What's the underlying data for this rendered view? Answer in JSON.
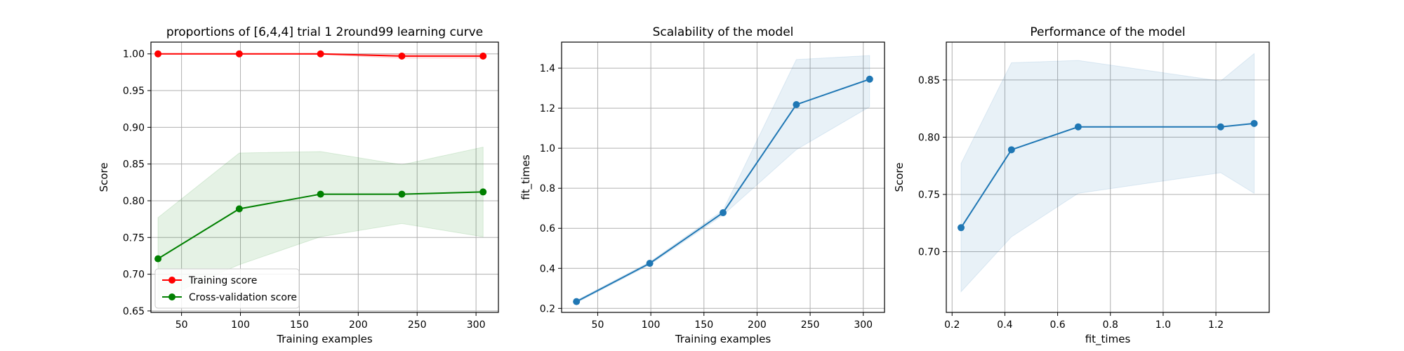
{
  "chart_data": [
    {
      "type": "line",
      "title": "proportions of [6,4,4] trial 1 2round99 learning curve",
      "xlabel": "Training examples",
      "ylabel": "Score",
      "xlim": [
        24,
        319
      ],
      "ylim": [
        0.648,
        1.016
      ],
      "xticks": [
        50,
        100,
        150,
        200,
        250,
        300
      ],
      "yticks": [
        0.65,
        0.7,
        0.75,
        0.8,
        0.85,
        0.9,
        0.95,
        1.0
      ],
      "grid": true,
      "legend": "lower-left",
      "x": [
        30,
        99,
        168,
        237,
        306
      ],
      "series": [
        {
          "name": "Training score",
          "color": "#ff0000",
          "values": [
            1.0,
            1.0,
            1.0,
            0.997,
            0.997
          ],
          "band_upper": [
            1.0,
            1.0,
            1.0,
            1.0,
            1.0
          ],
          "band_lower": [
            1.0,
            1.0,
            0.999,
            0.994,
            0.994
          ]
        },
        {
          "name": "Cross-validation score",
          "color": "#008000",
          "values": [
            0.721,
            0.789,
            0.809,
            0.809,
            0.812
          ],
          "band_upper": [
            0.777,
            0.865,
            0.867,
            0.849,
            0.873
          ],
          "band_lower": [
            0.665,
            0.713,
            0.751,
            0.769,
            0.751
          ]
        }
      ]
    },
    {
      "type": "line",
      "title": "Scalability of the model",
      "xlabel": "Training examples",
      "ylabel": "fit_times",
      "xlim": [
        16,
        320
      ],
      "ylim": [
        0.18,
        1.53
      ],
      "xticks": [
        50,
        100,
        150,
        200,
        250,
        300
      ],
      "yticks": [
        0.2,
        0.4,
        0.6,
        0.8,
        1.0,
        1.2,
        1.4
      ],
      "grid": true,
      "x": [
        30,
        99,
        168,
        237,
        306
      ],
      "series": [
        {
          "name": "",
          "color": "#1f77b4",
          "values": [
            0.234,
            0.425,
            0.678,
            1.218,
            1.345
          ],
          "band_upper": [
            0.24,
            0.432,
            0.69,
            1.443,
            1.463
          ],
          "band_lower": [
            0.228,
            0.418,
            0.666,
            0.993,
            1.207
          ]
        }
      ]
    },
    {
      "type": "line",
      "title": "Performance of the model",
      "xlabel": "fit_times",
      "ylabel": "Score",
      "xlim": [
        0.178,
        1.402
      ],
      "ylim": [
        0.647,
        0.883
      ],
      "xticks": [
        0.2,
        0.4,
        0.6,
        0.8,
        1.0,
        1.2
      ],
      "yticks": [
        0.7,
        0.75,
        0.8,
        0.85
      ],
      "grid": true,
      "x": [
        0.234,
        0.425,
        0.678,
        1.218,
        1.345
      ],
      "series": [
        {
          "name": "",
          "color": "#1f77b4",
          "values": [
            0.721,
            0.789,
            0.809,
            0.809,
            0.812
          ],
          "band_upper": [
            0.777,
            0.865,
            0.867,
            0.849,
            0.873
          ],
          "band_lower": [
            0.665,
            0.713,
            0.751,
            0.769,
            0.751
          ]
        }
      ]
    }
  ]
}
